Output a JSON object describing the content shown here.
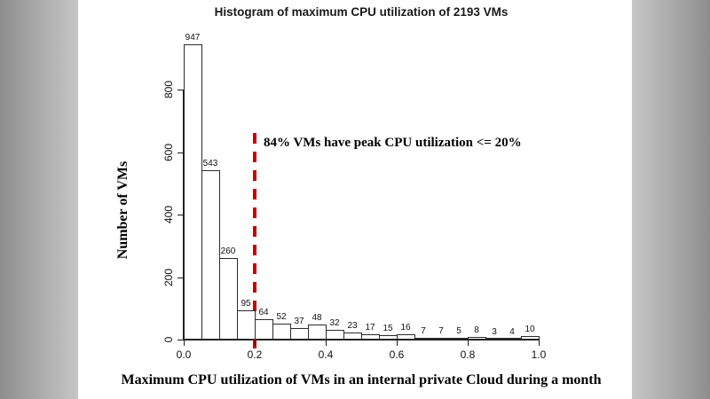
{
  "chart_data": {
    "type": "bar",
    "title": "Histogram of maximum CPU utilization of 2193 VMs",
    "xlabel": "Maximum CPU utilization of VMs in an internal private Cloud during a month",
    "ylabel": "Number of VMs",
    "bin_start": 0.0,
    "bin_width": 0.05,
    "categories": [
      "0.00",
      "0.05",
      "0.10",
      "0.15",
      "0.20",
      "0.25",
      "0.30",
      "0.35",
      "0.40",
      "0.45",
      "0.50",
      "0.55",
      "0.60",
      "0.65",
      "0.70",
      "0.75",
      "0.80",
      "0.85",
      "0.90",
      "0.95"
    ],
    "values": [
      947,
      543,
      260,
      95,
      64,
      52,
      37,
      48,
      32,
      23,
      17,
      15,
      16,
      7,
      7,
      5,
      8,
      3,
      4,
      10
    ],
    "total_vms": 2193,
    "x_ticks": [
      "0.0",
      "0.2",
      "0.4",
      "0.6",
      "0.8",
      "1.0"
    ],
    "y_ticks": [
      0,
      200,
      400,
      600,
      800
    ],
    "xlim": [
      0,
      1
    ],
    "ylim": [
      0,
      960
    ],
    "grid": false,
    "legend": "none",
    "bar_fill": "#ffffff",
    "bar_border": "#2b2b2b",
    "annotation": {
      "text": "84% VMs have peak CPU utilization <= 20%",
      "x": 0.2,
      "line_style": "dashed",
      "line_color": "#cc0000"
    }
  }
}
